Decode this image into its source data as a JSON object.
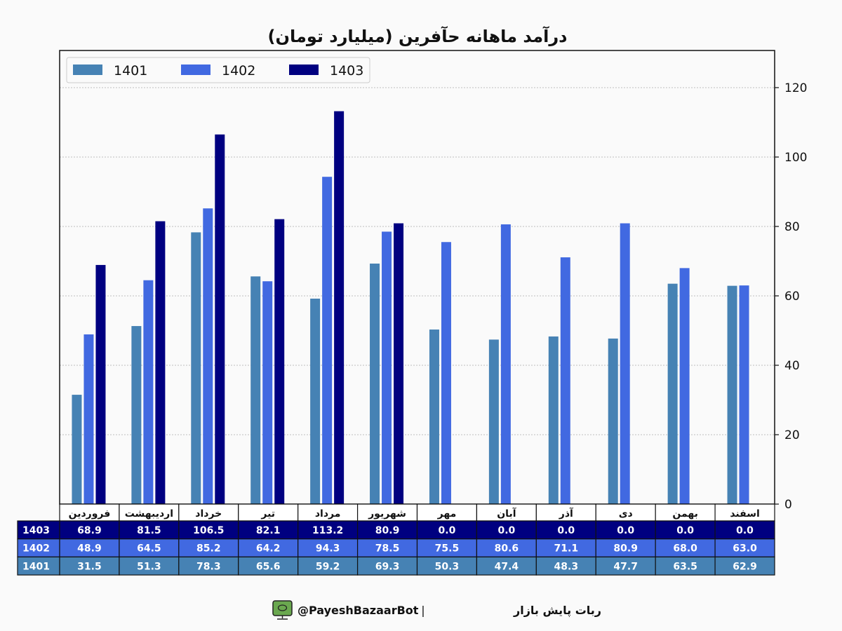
{
  "chart_data": {
    "type": "bar",
    "title": "درآمد ماهانه حآفرین (میلیارد تومان)",
    "categories": [
      "فروردین",
      "اردیبهشت",
      "خرداد",
      "تیر",
      "مرداد",
      "شهریور",
      "مهر",
      "آبان",
      "آذر",
      "دی",
      "بهمن",
      "اسفند"
    ],
    "series": [
      {
        "name": "1401",
        "color": "#4682B4",
        "values": [
          31.5,
          51.3,
          78.3,
          65.6,
          59.2,
          69.3,
          50.3,
          47.4,
          48.3,
          47.7,
          63.5,
          62.9
        ]
      },
      {
        "name": "1402",
        "color": "#4169E1",
        "values": [
          48.9,
          64.5,
          85.2,
          64.2,
          94.3,
          78.5,
          75.5,
          80.6,
          71.1,
          80.9,
          68.0,
          63.0
        ]
      },
      {
        "name": "1403",
        "color": "#000080",
        "values": [
          68.9,
          81.5,
          106.5,
          82.1,
          113.2,
          80.9,
          0.0,
          0.0,
          0.0,
          0.0,
          0.0,
          0.0
        ]
      }
    ],
    "ylim": [
      0,
      130.7
    ],
    "yticks": [
      0,
      20,
      40,
      60,
      80,
      100,
      120
    ],
    "y_axis_side": "right",
    "grid": true,
    "legend_placement": "top-left",
    "table_rows_order": [
      "1403",
      "1402",
      "1401"
    ]
  },
  "footer": {
    "bot_name": "ربات پایش بازار",
    "separator": "|",
    "handle": "@PayeshBazaarBot",
    "icon": "monitor-icon"
  }
}
